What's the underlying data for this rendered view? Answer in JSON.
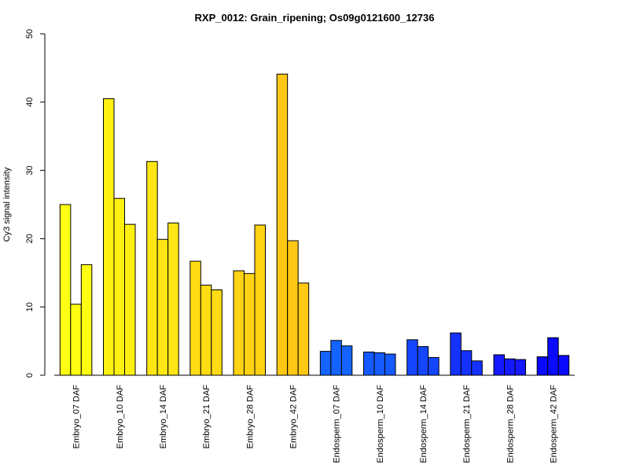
{
  "chart_data": {
    "type": "bar",
    "title": "RXP_0012: Grain_ripening; Os09g0121600_12736",
    "xlabel": "",
    "ylabel": "Cy3 signal intensity",
    "ylim": [
      0,
      50
    ],
    "yticks": [
      0,
      10,
      20,
      30,
      40,
      50
    ],
    "grid": false,
    "legend": "none",
    "categories": [
      "Embryo_07 DAF",
      "Embryo_10 DAF",
      "Embryo_14 DAF",
      "Embryo_21 DAF",
      "Embryo_28 DAF",
      "Embryo_42 DAF",
      "Endosperm_07 DAF",
      "Endosperm_10 DAF",
      "Endosperm_14 DAF",
      "Endosperm_21 DAF",
      "Endosperm_28 DAF",
      "Endosperm_42 DAF"
    ],
    "colors": [
      "#ffff14",
      "#fff014",
      "#ffe614",
      "#ffdc14",
      "#ffd214",
      "#ffc814",
      "#1464ff",
      "#145aff",
      "#1446ff",
      "#1432ff",
      "#1419ff",
      "#0a0aff"
    ],
    "bars_per_category": 3,
    "values": [
      [
        25.0,
        10.4,
        16.2
      ],
      [
        40.5,
        25.9,
        22.1
      ],
      [
        31.3,
        19.9,
        22.3
      ],
      [
        16.7,
        13.2,
        12.5
      ],
      [
        15.3,
        14.9,
        22.0
      ],
      [
        44.1,
        19.7,
        13.5
      ],
      [
        3.5,
        5.1,
        4.3
      ],
      [
        3.4,
        3.3,
        3.1
      ],
      [
        5.2,
        4.2,
        2.6
      ],
      [
        6.2,
        3.6,
        2.1
      ],
      [
        3.0,
        2.4,
        2.3
      ],
      [
        2.7,
        5.5,
        2.9
      ]
    ]
  }
}
